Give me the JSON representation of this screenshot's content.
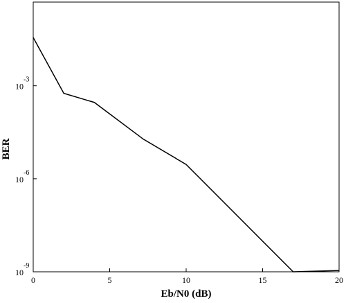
{
  "chart_data": {
    "type": "line",
    "x_label": "Eb/N0 (dB)",
    "y_label": "BER",
    "x": [
      0,
      2,
      4,
      7.2,
      10,
      17,
      20
    ],
    "series": [
      {
        "color": "#000000",
        "values": [
          0.036,
          0.00057,
          0.00029,
          1.9e-05,
          2.9e-06,
          1e-09,
          1.1e-09
        ]
      }
    ],
    "xlim": [
      0,
      20
    ],
    "xticks": [
      0,
      5,
      10,
      15,
      20
    ],
    "ylim": [
      1e-09,
      0.5
    ],
    "y_log": true,
    "yticks": [
      {
        "value": 0.001,
        "label": "10",
        "superscript": "-3"
      },
      {
        "value": 1e-06,
        "label": "10",
        "superscript": "-6"
      },
      {
        "value": 1e-09,
        "label": "10",
        "superscript": "-9"
      }
    ],
    "grid": false
  }
}
